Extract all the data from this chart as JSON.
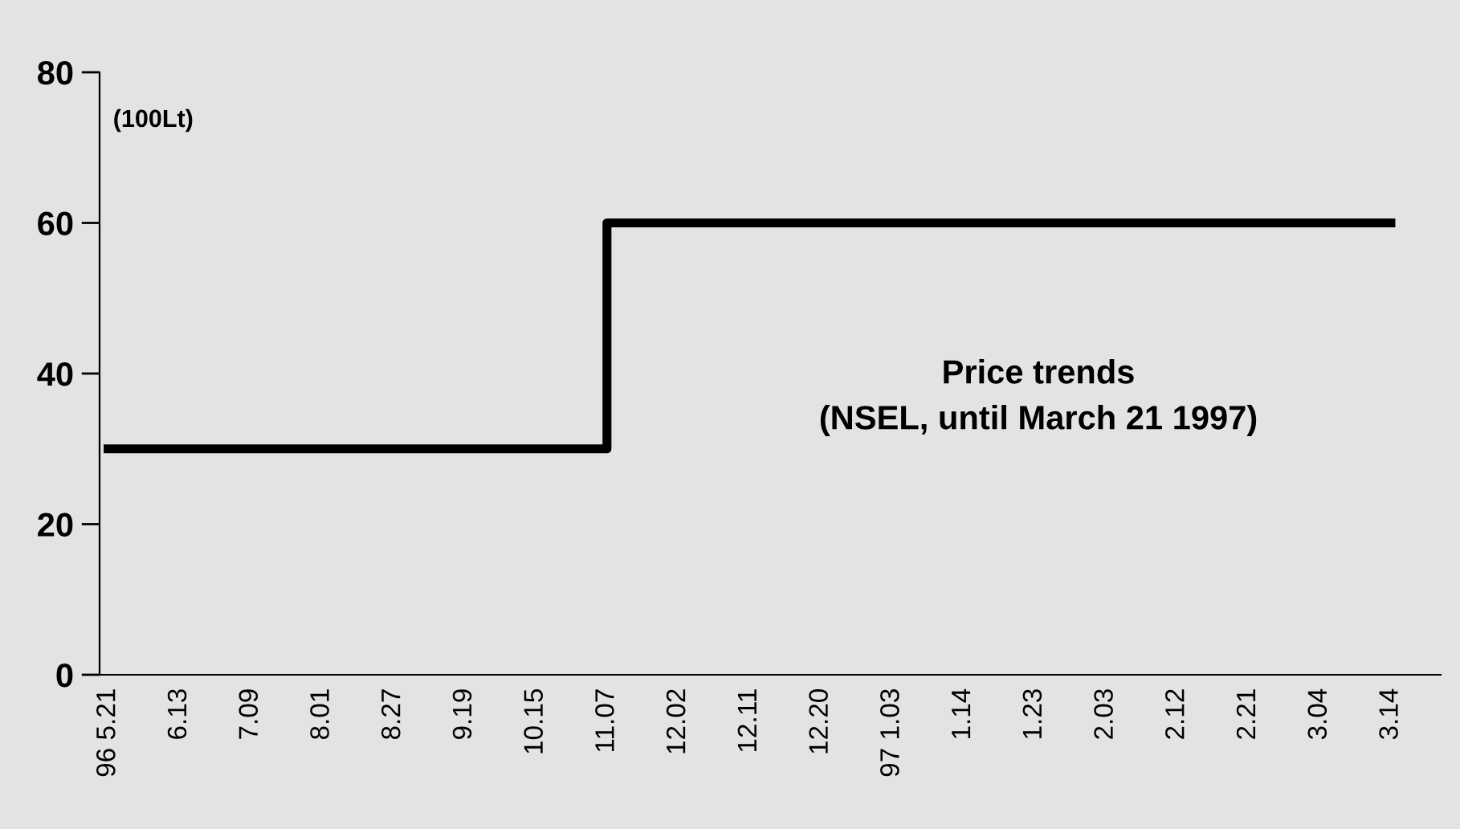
{
  "chart_data": {
    "type": "step",
    "categories": [
      "96 5.21",
      "6.13",
      "7.09",
      "8.01",
      "8.27",
      "9.19",
      "10.15",
      "11.07",
      "12.02",
      "12.11",
      "12.20",
      "97 1.03",
      "1.14",
      "1.23",
      "2.03",
      "2.12",
      "2.21",
      "3.04",
      "3.14"
    ],
    "series": [
      {
        "color": "#000000",
        "values": [
          30,
          30,
          30,
          30,
          30,
          30,
          30,
          30,
          60,
          60,
          60,
          60,
          60,
          60,
          60,
          60,
          60,
          60,
          60
        ]
      }
    ],
    "ylim": [
      0,
      80
    ],
    "yticks": [
      0,
      20,
      40,
      60,
      80
    ],
    "grid": false,
    "legend": false,
    "marker": "none",
    "line_style": "solid",
    "annotations": [
      {
        "text": "(100Lt)"
      },
      {
        "text": "Price trends\n(NSEL, until March 21 1997)"
      }
    ]
  }
}
